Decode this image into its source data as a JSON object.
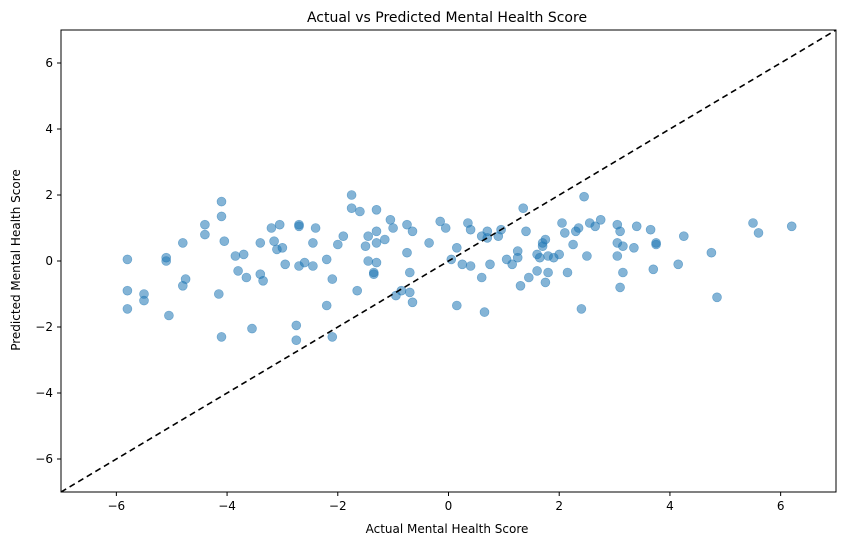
{
  "chart_data": {
    "type": "scatter",
    "title": "Actual vs Predicted Mental Health Score",
    "xlabel": "Actual Mental Health Score",
    "ylabel": "Predicted Mental Health Score",
    "xlim": [
      -7,
      7
    ],
    "ylim": [
      -7,
      7
    ],
    "xticks": [
      -6,
      -4,
      -2,
      0,
      2,
      4,
      6
    ],
    "yticks": [
      -6,
      -4,
      -2,
      0,
      2,
      4,
      6
    ],
    "grid": false,
    "point_color": "#1f77b4",
    "point_alpha": 0.55,
    "reference_line": {
      "style": "dashed",
      "color": "#000000",
      "from": [
        -7,
        -7
      ],
      "to": [
        7,
        7
      ]
    },
    "points": [
      [
        -5.8,
        0.05
      ],
      [
        -5.8,
        -0.9
      ],
      [
        -5.8,
        -1.45
      ],
      [
        -5.5,
        -1.0
      ],
      [
        -5.5,
        -1.2
      ],
      [
        -5.1,
        0.1
      ],
      [
        -5.1,
        0.0
      ],
      [
        -5.05,
        -1.65
      ],
      [
        -4.8,
        0.55
      ],
      [
        -4.8,
        -0.75
      ],
      [
        -4.75,
        -0.55
      ],
      [
        -4.4,
        1.1
      ],
      [
        -4.4,
        0.8
      ],
      [
        -4.15,
        -1.0
      ],
      [
        -4.1,
        1.8
      ],
      [
        -4.1,
        1.35
      ],
      [
        -4.1,
        -2.3
      ],
      [
        -4.05,
        0.6
      ],
      [
        -3.85,
        0.15
      ],
      [
        -3.8,
        -0.3
      ],
      [
        -3.7,
        0.2
      ],
      [
        -3.65,
        -0.5
      ],
      [
        -3.55,
        -2.05
      ],
      [
        -3.4,
        0.55
      ],
      [
        -3.4,
        -0.4
      ],
      [
        -3.35,
        -0.6
      ],
      [
        -3.2,
        1.0
      ],
      [
        -3.15,
        0.6
      ],
      [
        -3.1,
        0.35
      ],
      [
        -3.05,
        1.1
      ],
      [
        -3.0,
        0.4
      ],
      [
        -2.95,
        -0.1
      ],
      [
        -2.75,
        -1.95
      ],
      [
        -2.75,
        -2.4
      ],
      [
        -2.7,
        1.05
      ],
      [
        -2.7,
        1.1
      ],
      [
        -2.7,
        -0.15
      ],
      [
        -2.6,
        -0.05
      ],
      [
        -2.45,
        0.55
      ],
      [
        -2.45,
        -0.15
      ],
      [
        -2.4,
        1.0
      ],
      [
        -2.2,
        0.05
      ],
      [
        -2.2,
        -1.35
      ],
      [
        -2.1,
        -0.55
      ],
      [
        -2.1,
        -2.3
      ],
      [
        -2.0,
        0.5
      ],
      [
        -1.9,
        0.75
      ],
      [
        -1.75,
        2.0
      ],
      [
        -1.75,
        1.6
      ],
      [
        -1.65,
        -0.9
      ],
      [
        -1.6,
        1.5
      ],
      [
        -1.5,
        0.45
      ],
      [
        -1.45,
        0.75
      ],
      [
        -1.45,
        0.0
      ],
      [
        -1.35,
        -0.35
      ],
      [
        -1.35,
        -0.4
      ],
      [
        -1.3,
        1.55
      ],
      [
        -1.3,
        0.55
      ],
      [
        -1.3,
        -0.05
      ],
      [
        -1.3,
        0.9
      ],
      [
        -1.15,
        0.65
      ],
      [
        -1.05,
        1.25
      ],
      [
        -1.0,
        1.0
      ],
      [
        -0.95,
        -1.05
      ],
      [
        -0.85,
        -0.9
      ],
      [
        -0.75,
        1.1
      ],
      [
        -0.75,
        0.25
      ],
      [
        -0.7,
        -0.35
      ],
      [
        -0.7,
        -0.95
      ],
      [
        -0.65,
        0.9
      ],
      [
        -0.65,
        -1.25
      ],
      [
        -0.35,
        0.55
      ],
      [
        -0.15,
        1.2
      ],
      [
        -0.05,
        1.0
      ],
      [
        0.05,
        0.05
      ],
      [
        0.15,
        0.4
      ],
      [
        0.15,
        -1.35
      ],
      [
        0.25,
        -0.1
      ],
      [
        0.35,
        1.15
      ],
      [
        0.4,
        0.95
      ],
      [
        0.4,
        -0.15
      ],
      [
        0.6,
        -0.5
      ],
      [
        0.6,
        0.75
      ],
      [
        0.65,
        -1.55
      ],
      [
        0.7,
        0.9
      ],
      [
        0.7,
        0.7
      ],
      [
        0.75,
        -0.1
      ],
      [
        0.9,
        0.75
      ],
      [
        0.95,
        0.95
      ],
      [
        1.05,
        0.05
      ],
      [
        1.15,
        -0.1
      ],
      [
        1.25,
        0.1
      ],
      [
        1.25,
        0.3
      ],
      [
        1.3,
        -0.75
      ],
      [
        1.35,
        1.6
      ],
      [
        1.4,
        0.9
      ],
      [
        1.45,
        -0.5
      ],
      [
        1.6,
        0.2
      ],
      [
        1.6,
        -0.3
      ],
      [
        1.65,
        0.1
      ],
      [
        1.7,
        0.45
      ],
      [
        1.7,
        0.55
      ],
      [
        1.75,
        0.65
      ],
      [
        1.75,
        -0.65
      ],
      [
        1.8,
        0.15
      ],
      [
        1.8,
        -0.35
      ],
      [
        1.9,
        0.1
      ],
      [
        2.0,
        0.2
      ],
      [
        2.05,
        1.15
      ],
      [
        2.1,
        0.85
      ],
      [
        2.15,
        -0.35
      ],
      [
        2.25,
        0.5
      ],
      [
        2.3,
        0.9
      ],
      [
        2.35,
        1.0
      ],
      [
        2.4,
        -1.45
      ],
      [
        2.45,
        1.95
      ],
      [
        2.5,
        0.15
      ],
      [
        2.55,
        1.15
      ],
      [
        2.65,
        1.05
      ],
      [
        2.75,
        1.25
      ],
      [
        3.05,
        0.15
      ],
      [
        3.05,
        1.1
      ],
      [
        3.05,
        0.55
      ],
      [
        3.1,
        0.9
      ],
      [
        3.1,
        -0.8
      ],
      [
        3.15,
        -0.35
      ],
      [
        3.15,
        0.45
      ],
      [
        3.35,
        0.4
      ],
      [
        3.4,
        1.05
      ],
      [
        3.65,
        0.95
      ],
      [
        3.7,
        -0.25
      ],
      [
        3.75,
        0.5
      ],
      [
        3.75,
        0.55
      ],
      [
        4.15,
        -0.1
      ],
      [
        4.25,
        0.75
      ],
      [
        4.75,
        0.25
      ],
      [
        4.85,
        -1.1
      ],
      [
        5.5,
        1.15
      ],
      [
        5.6,
        0.85
      ],
      [
        6.2,
        1.05
      ]
    ]
  }
}
